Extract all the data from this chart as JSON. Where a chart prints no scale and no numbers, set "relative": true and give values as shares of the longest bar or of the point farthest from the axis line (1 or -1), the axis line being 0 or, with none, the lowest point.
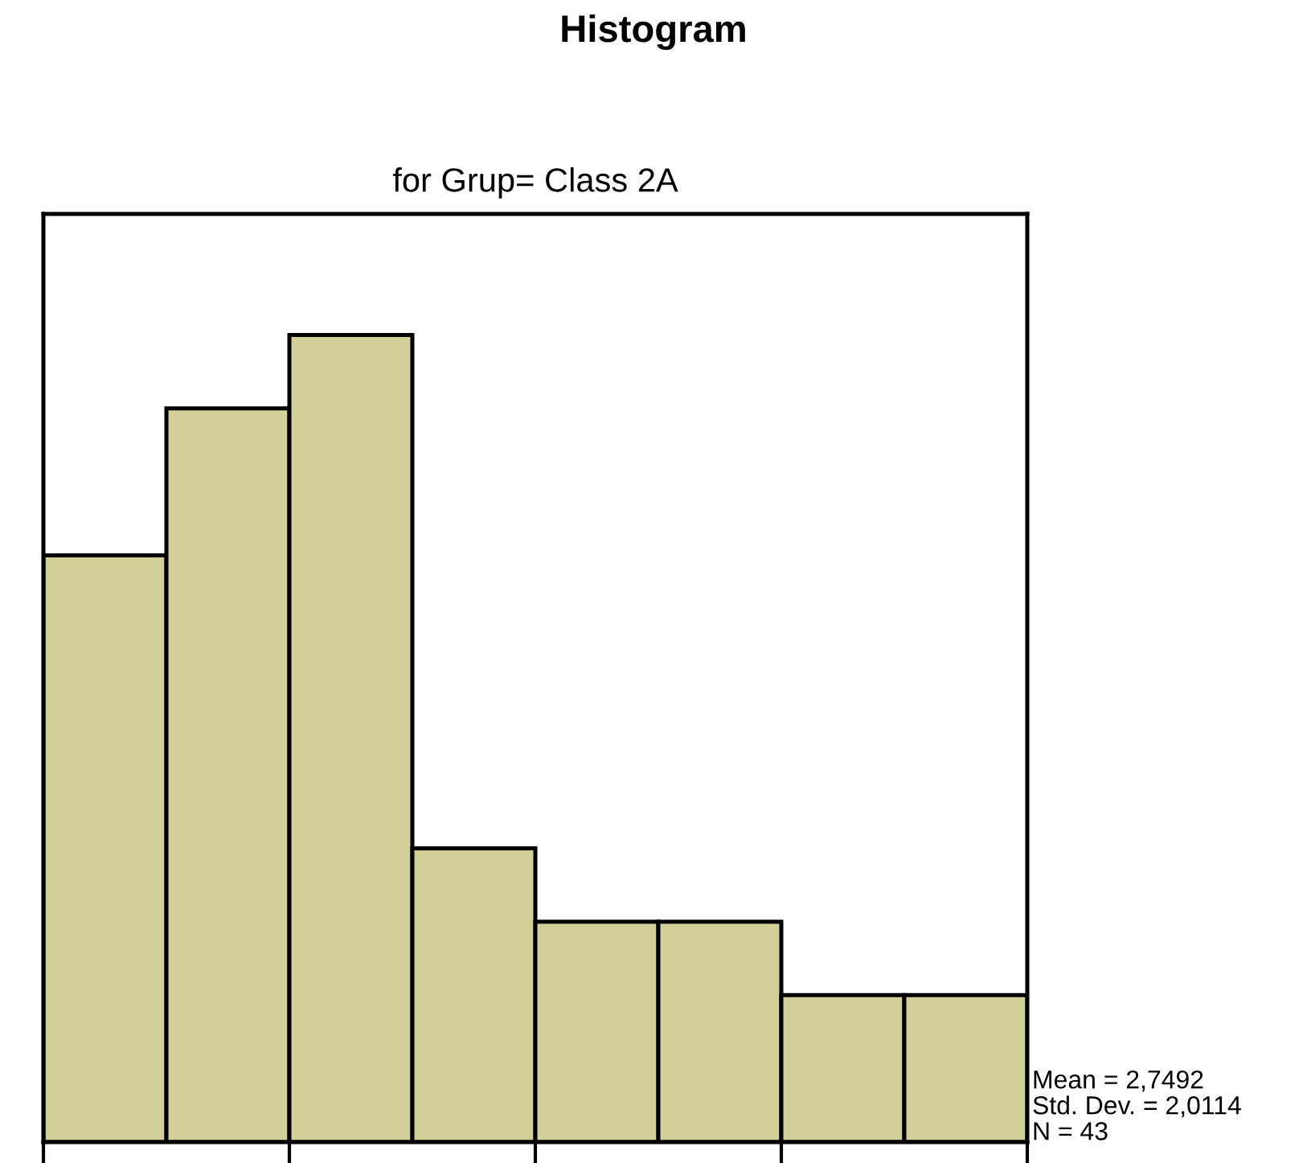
{
  "chart_data": {
    "type": "bar",
    "title": "Histogram",
    "subtitle": "for Grup= Class 2A",
    "categories": [
      null,
      null,
      null,
      null,
      null,
      null,
      null,
      null
    ],
    "values": [
      0.727,
      0.909,
      1,
      0.364,
      0.273,
      0.273,
      0.182,
      0.182
    ],
    "relative": true,
    "color": "#d3cf98",
    "annotations": [
      "Mean = 2,7492",
      "Std. Dev. = 2,0114",
      "N = 43"
    ]
  }
}
